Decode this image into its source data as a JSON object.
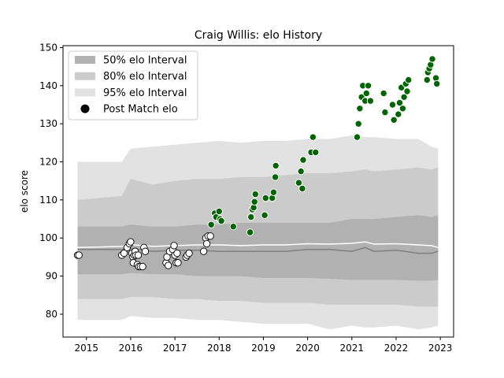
{
  "chart_data": {
    "type": "scatter",
    "title": "Craig Willis: elo History",
    "xlabel": "",
    "ylabel": "elo score",
    "xlim": [
      2014.47,
      2023.3
    ],
    "ylim": [
      74.0,
      150.5
    ],
    "x_ticks": [
      2015,
      2016,
      2017,
      2018,
      2019,
      2020,
      2021,
      2022,
      2023
    ],
    "y_ticks": [
      80,
      90,
      100,
      110,
      120,
      130,
      140,
      150
    ],
    "legend": {
      "position": "top-left",
      "entries": [
        "50% elo Interval",
        "80% elo Interval",
        "95% elo Interval",
        "Post Match elo"
      ]
    },
    "colors": {
      "band95": "#e2e2e2",
      "band80": "#cbcbcb",
      "band50": "#b1b1b1",
      "median": "#808080",
      "mean": "#ffffff",
      "early_points": "#ffffff",
      "recent_points": "#006400"
    },
    "intervals": {
      "x": [
        2014.8,
        2015.8,
        2016.0,
        2016.5,
        2017.0,
        2017.5,
        2018.0,
        2018.5,
        2019.0,
        2019.5,
        2020.0,
        2020.5,
        2021.0,
        2021.3,
        2021.5,
        2022.0,
        2022.5,
        2022.8,
        2022.95
      ],
      "q025": [
        78.5,
        78.5,
        79.5,
        79.0,
        79.0,
        78.5,
        78.5,
        78.0,
        77.5,
        77.5,
        77.5,
        76.0,
        77.0,
        76.5,
        76.5,
        77.0,
        76.0,
        76.5,
        77.0
      ],
      "q10": [
        84.0,
        84.0,
        84.5,
        84.5,
        84.0,
        84.0,
        83.5,
        83.5,
        83.0,
        83.0,
        83.0,
        82.5,
        82.5,
        82.5,
        82.5,
        82.5,
        82.0,
        82.0,
        82.0
      ],
      "q25": [
        90.5,
        90.5,
        90.8,
        90.5,
        90.5,
        90.0,
        90.0,
        90.0,
        89.5,
        89.5,
        89.5,
        89.3,
        89.0,
        89.0,
        89.0,
        89.0,
        88.8,
        88.8,
        89.0
      ],
      "median": [
        97.0,
        97.0,
        97.3,
        96.5,
        96.8,
        96.8,
        96.5,
        96.5,
        96.5,
        96.5,
        97.0,
        97.0,
        96.5,
        97.5,
        96.5,
        96.8,
        96.0,
        96.0,
        96.5
      ],
      "mean": [
        97.5,
        97.8,
        98.3,
        97.8,
        98.0,
        98.2,
        98.2,
        98.0,
        98.2,
        98.2,
        98.5,
        98.4,
        98.6,
        99.0,
        98.4,
        98.5,
        98.2,
        98.0,
        97.5
      ],
      "q75": [
        103.0,
        103.0,
        103.5,
        103.0,
        103.0,
        103.5,
        103.5,
        104.0,
        104.0,
        104.0,
        104.0,
        104.0,
        105.0,
        105.0,
        105.0,
        105.5,
        106.0,
        105.5,
        106.0
      ],
      "q90": [
        110.0,
        111.0,
        115.5,
        114.0,
        115.0,
        115.5,
        115.5,
        116.0,
        116.0,
        116.5,
        117.0,
        117.0,
        117.5,
        118.0,
        117.5,
        118.0,
        118.5,
        118.0,
        118.5
      ],
      "q975": [
        120.0,
        120.0,
        123.5,
        124.0,
        124.5,
        125.0,
        125.5,
        125.0,
        125.5,
        125.5,
        126.0,
        126.0,
        127.0,
        126.5,
        126.5,
        126.0,
        126.0,
        124.0,
        123.5
      ]
    },
    "series": [
      {
        "name": "Post Match elo",
        "points": [
          [
            2014.8,
            95.5
          ],
          [
            2014.83,
            95.5
          ],
          [
            2015.8,
            95.5
          ],
          [
            2015.85,
            96.0
          ],
          [
            2015.92,
            97.5
          ],
          [
            2015.97,
            98.5
          ],
          [
            2016.0,
            99.0
          ],
          [
            2016.03,
            96.0
          ],
          [
            2016.05,
            95.0
          ],
          [
            2016.06,
            93.5
          ],
          [
            2016.08,
            95.5
          ],
          [
            2016.1,
            96.5
          ],
          [
            2016.12,
            95.5
          ],
          [
            2016.15,
            93.0
          ],
          [
            2016.17,
            95.5
          ],
          [
            2016.18,
            92.5
          ],
          [
            2016.22,
            92.5
          ],
          [
            2016.27,
            92.5
          ],
          [
            2016.3,
            97.5
          ],
          [
            2016.33,
            96.5
          ],
          [
            2016.8,
            93.5
          ],
          [
            2016.82,
            95.0
          ],
          [
            2016.85,
            92.8
          ],
          [
            2016.88,
            96.5
          ],
          [
            2016.95,
            97.0
          ],
          [
            2016.98,
            98.0
          ],
          [
            2017.0,
            95.5
          ],
          [
            2017.03,
            93.5
          ],
          [
            2017.05,
            96.0
          ],
          [
            2017.07,
            93.5
          ],
          [
            2017.25,
            95.0
          ],
          [
            2017.28,
            95.5
          ],
          [
            2017.32,
            96.0
          ],
          [
            2017.65,
            96.5
          ],
          [
            2017.7,
            100.0
          ],
          [
            2017.72,
            98.5
          ],
          [
            2017.75,
            100.5
          ],
          [
            2017.8,
            100.5
          ],
          [
            2017.82,
            103.5
          ],
          [
            2017.9,
            106.5
          ],
          [
            2017.93,
            105.5
          ],
          [
            2018.0,
            107.0
          ],
          [
            2018.02,
            105.0
          ],
          [
            2018.05,
            104.5
          ],
          [
            2018.32,
            103.0
          ],
          [
            2018.7,
            101.5
          ],
          [
            2018.72,
            105.5
          ],
          [
            2018.75,
            107.5
          ],
          [
            2018.78,
            108.0
          ],
          [
            2018.8,
            109.5
          ],
          [
            2018.82,
            111.5
          ],
          [
            2019.03,
            106.0
          ],
          [
            2019.05,
            110.5
          ],
          [
            2019.2,
            110.5
          ],
          [
            2019.23,
            112.0
          ],
          [
            2019.27,
            116.0
          ],
          [
            2019.28,
            119.0
          ],
          [
            2019.8,
            114.5
          ],
          [
            2019.85,
            117.5
          ],
          [
            2019.88,
            113.0
          ],
          [
            2019.9,
            120.5
          ],
          [
            2020.08,
            122.5
          ],
          [
            2020.12,
            126.5
          ],
          [
            2020.18,
            122.5
          ],
          [
            2021.12,
            126.5
          ],
          [
            2021.15,
            130.0
          ],
          [
            2021.18,
            134.0
          ],
          [
            2021.22,
            137.0
          ],
          [
            2021.25,
            140.0
          ],
          [
            2021.3,
            136.0
          ],
          [
            2021.33,
            138.0
          ],
          [
            2021.37,
            140.0
          ],
          [
            2021.42,
            136.0
          ],
          [
            2021.72,
            138.0
          ],
          [
            2021.75,
            133.0
          ],
          [
            2021.92,
            135.0
          ],
          [
            2021.95,
            131.0
          ],
          [
            2022.05,
            132.5
          ],
          [
            2022.08,
            135.5
          ],
          [
            2022.12,
            139.5
          ],
          [
            2022.15,
            134.0
          ],
          [
            2022.18,
            137.0
          ],
          [
            2022.22,
            140.5
          ],
          [
            2022.25,
            138.5
          ],
          [
            2022.28,
            141.5
          ],
          [
            2022.7,
            141.5
          ],
          [
            2022.72,
            143.5
          ],
          [
            2022.75,
            144.5
          ],
          [
            2022.78,
            145.5
          ],
          [
            2022.82,
            147.0
          ],
          [
            2022.9,
            142.0
          ],
          [
            2022.92,
            140.5
          ]
        ]
      }
    ]
  }
}
